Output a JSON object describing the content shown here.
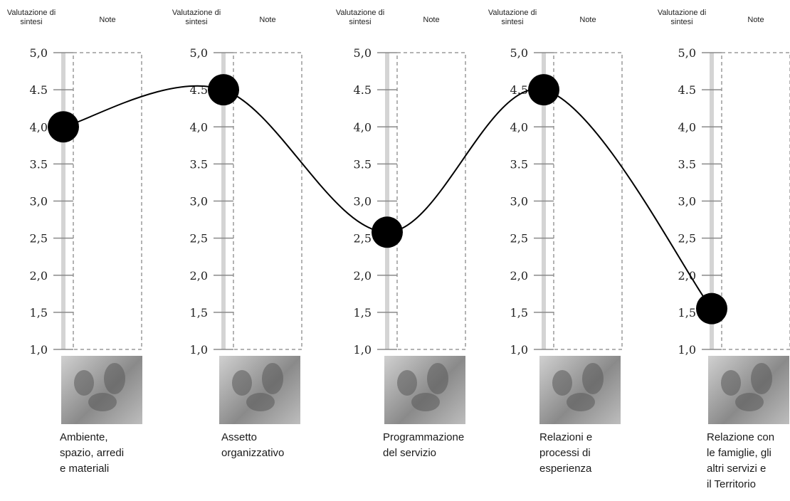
{
  "panel_headers": {
    "rating": "Valutazione di sintesi",
    "notes": "Note"
  },
  "chart_data": {
    "type": "line",
    "ylim": [
      1.0,
      5.0
    ],
    "yticks": [
      "1,0",
      "1,5",
      "2,0",
      "2,5",
      "3,0",
      "3.5",
      "4,0",
      "4.5",
      "5,0"
    ],
    "categories": [
      "Ambiente, spazio, arredi e materiali",
      "Assetto organizzativo",
      "Programmazione del servizio",
      "Relazioni e processi di esperienza",
      "Relazione con le famiglie, gli altri servizi e il Territorio"
    ],
    "values": [
      4.0,
      4.5,
      2.58,
      4.5,
      1.55
    ],
    "marker_color": "#000000",
    "line_color": "#000000",
    "grid": false
  },
  "captions": [
    [
      "Ambiente,",
      "spazio, arredi",
      "e materiali"
    ],
    [
      "Assetto",
      "organizzativo"
    ],
    [
      "Programmazione",
      "del servizio"
    ],
    [
      "Relazioni e",
      "processi di",
      "esperienza"
    ],
    [
      "Relazione con",
      "le famiglie, gli",
      "altri servizi e",
      "il Territorio"
    ]
  ]
}
